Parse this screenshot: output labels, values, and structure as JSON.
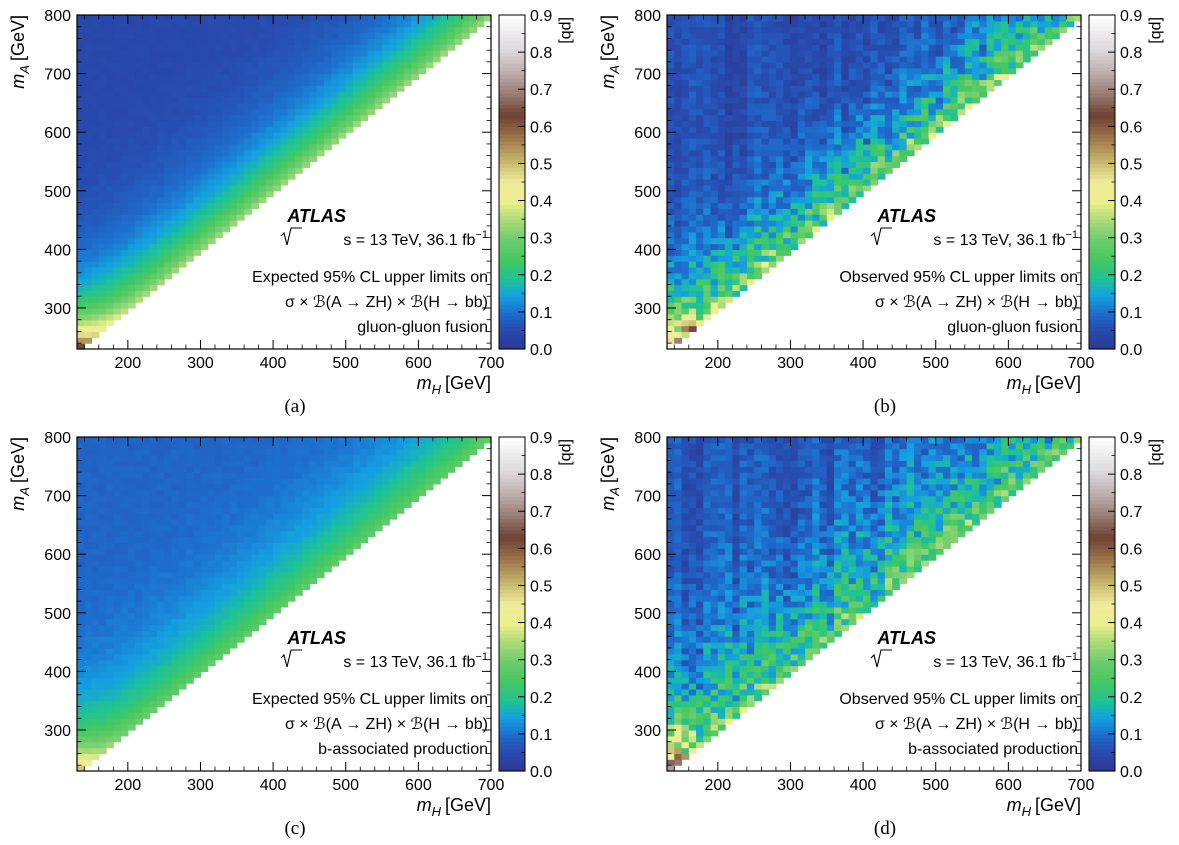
{
  "chart_data": [
    {
      "id": "a",
      "caption": "(a)",
      "type": "heatmap",
      "variant": "expected",
      "production": "ggF",
      "xlabel_var": "m",
      "xlabel_sub": "H",
      "xlabel_unit": "[GeV]",
      "ylabel_var": "m",
      "ylabel_sub": "A",
      "ylabel_unit": "[GeV]",
      "xlim": [
        130,
        700
      ],
      "ylim": [
        230,
        800
      ],
      "xticks": [
        200,
        300,
        400,
        500,
        600,
        700
      ],
      "yticks": [
        300,
        400,
        500,
        600,
        700,
        800
      ],
      "colorbar_label": "[pb]",
      "colorbar_range": [
        0.0,
        0.9
      ],
      "colorbar_ticks": [
        "0.0",
        "0.1",
        "0.2",
        "0.3",
        "0.4",
        "0.5",
        "0.6",
        "0.7",
        "0.8",
        "0.9"
      ],
      "atlas": "ATLAS",
      "energy_label": "s = 13 TeV,  36.1 fb",
      "sup": "−1",
      "line1": "Expected 95% CL upper limits on",
      "line2": "σ × ℬ(A → ZH) × ℬ(H → bb)",
      "line3": "gluon-gluon fusion"
    },
    {
      "id": "b",
      "caption": "(b)",
      "type": "heatmap",
      "variant": "observed",
      "production": "ggF",
      "xlabel_var": "m",
      "xlabel_sub": "H",
      "xlabel_unit": "[GeV]",
      "ylabel_var": "m",
      "ylabel_sub": "A",
      "ylabel_unit": "[GeV]",
      "xlim": [
        130,
        700
      ],
      "ylim": [
        230,
        800
      ],
      "xticks": [
        200,
        300,
        400,
        500,
        600,
        700
      ],
      "yticks": [
        300,
        400,
        500,
        600,
        700,
        800
      ],
      "colorbar_label": "[pb]",
      "colorbar_range": [
        0.0,
        0.9
      ],
      "colorbar_ticks": [
        "0.0",
        "0.1",
        "0.2",
        "0.3",
        "0.4",
        "0.5",
        "0.6",
        "0.7",
        "0.8",
        "0.9"
      ],
      "atlas": "ATLAS",
      "energy_label": "s = 13 TeV,  36.1 fb",
      "sup": "−1",
      "line1": "Observed 95% CL upper limits on",
      "line2": "σ × ℬ(A → ZH) × ℬ(H → bb)",
      "line3": "gluon-gluon fusion"
    },
    {
      "id": "c",
      "caption": "(c)",
      "type": "heatmap",
      "variant": "expected",
      "production": "bbA",
      "xlabel_var": "m",
      "xlabel_sub": "H",
      "xlabel_unit": "[GeV]",
      "ylabel_var": "m",
      "ylabel_sub": "A",
      "ylabel_unit": "[GeV]",
      "xlim": [
        130,
        700
      ],
      "ylim": [
        230,
        800
      ],
      "xticks": [
        200,
        300,
        400,
        500,
        600,
        700
      ],
      "yticks": [
        300,
        400,
        500,
        600,
        700,
        800
      ],
      "colorbar_label": "[pb]",
      "colorbar_range": [
        0.0,
        0.9
      ],
      "colorbar_ticks": [
        "0.0",
        "0.1",
        "0.2",
        "0.3",
        "0.4",
        "0.5",
        "0.6",
        "0.7",
        "0.8",
        "0.9"
      ],
      "atlas": "ATLAS",
      "energy_label": "s = 13 TeV,  36.1 fb",
      "sup": "−1",
      "line1": "Expected 95% CL upper limits on",
      "line2": "σ × ℬ(A → ZH) × ℬ(H → bb)",
      "line3": "b-associated production"
    },
    {
      "id": "d",
      "caption": "(d)",
      "type": "heatmap",
      "variant": "observed",
      "production": "bbA",
      "xlabel_var": "m",
      "xlabel_sub": "H",
      "xlabel_unit": "[GeV]",
      "ylabel_var": "m",
      "ylabel_sub": "A",
      "ylabel_unit": "[GeV]",
      "xlim": [
        130,
        700
      ],
      "ylim": [
        230,
        800
      ],
      "xticks": [
        200,
        300,
        400,
        500,
        600,
        700
      ],
      "yticks": [
        300,
        400,
        500,
        600,
        700,
        800
      ],
      "colorbar_label": "[pb]",
      "colorbar_range": [
        0.0,
        0.9
      ],
      "colorbar_ticks": [
        "0.0",
        "0.1",
        "0.2",
        "0.3",
        "0.4",
        "0.5",
        "0.6",
        "0.7",
        "0.8",
        "0.9"
      ],
      "atlas": "ATLAS",
      "energy_label": "s = 13 TeV,  36.1 fb",
      "sup": "−1",
      "line1": "Observed 95% CL upper limits on",
      "line2": "σ × ℬ(A → ZH) × ℬ(H → bb)",
      "line3": "b-associated production"
    }
  ]
}
